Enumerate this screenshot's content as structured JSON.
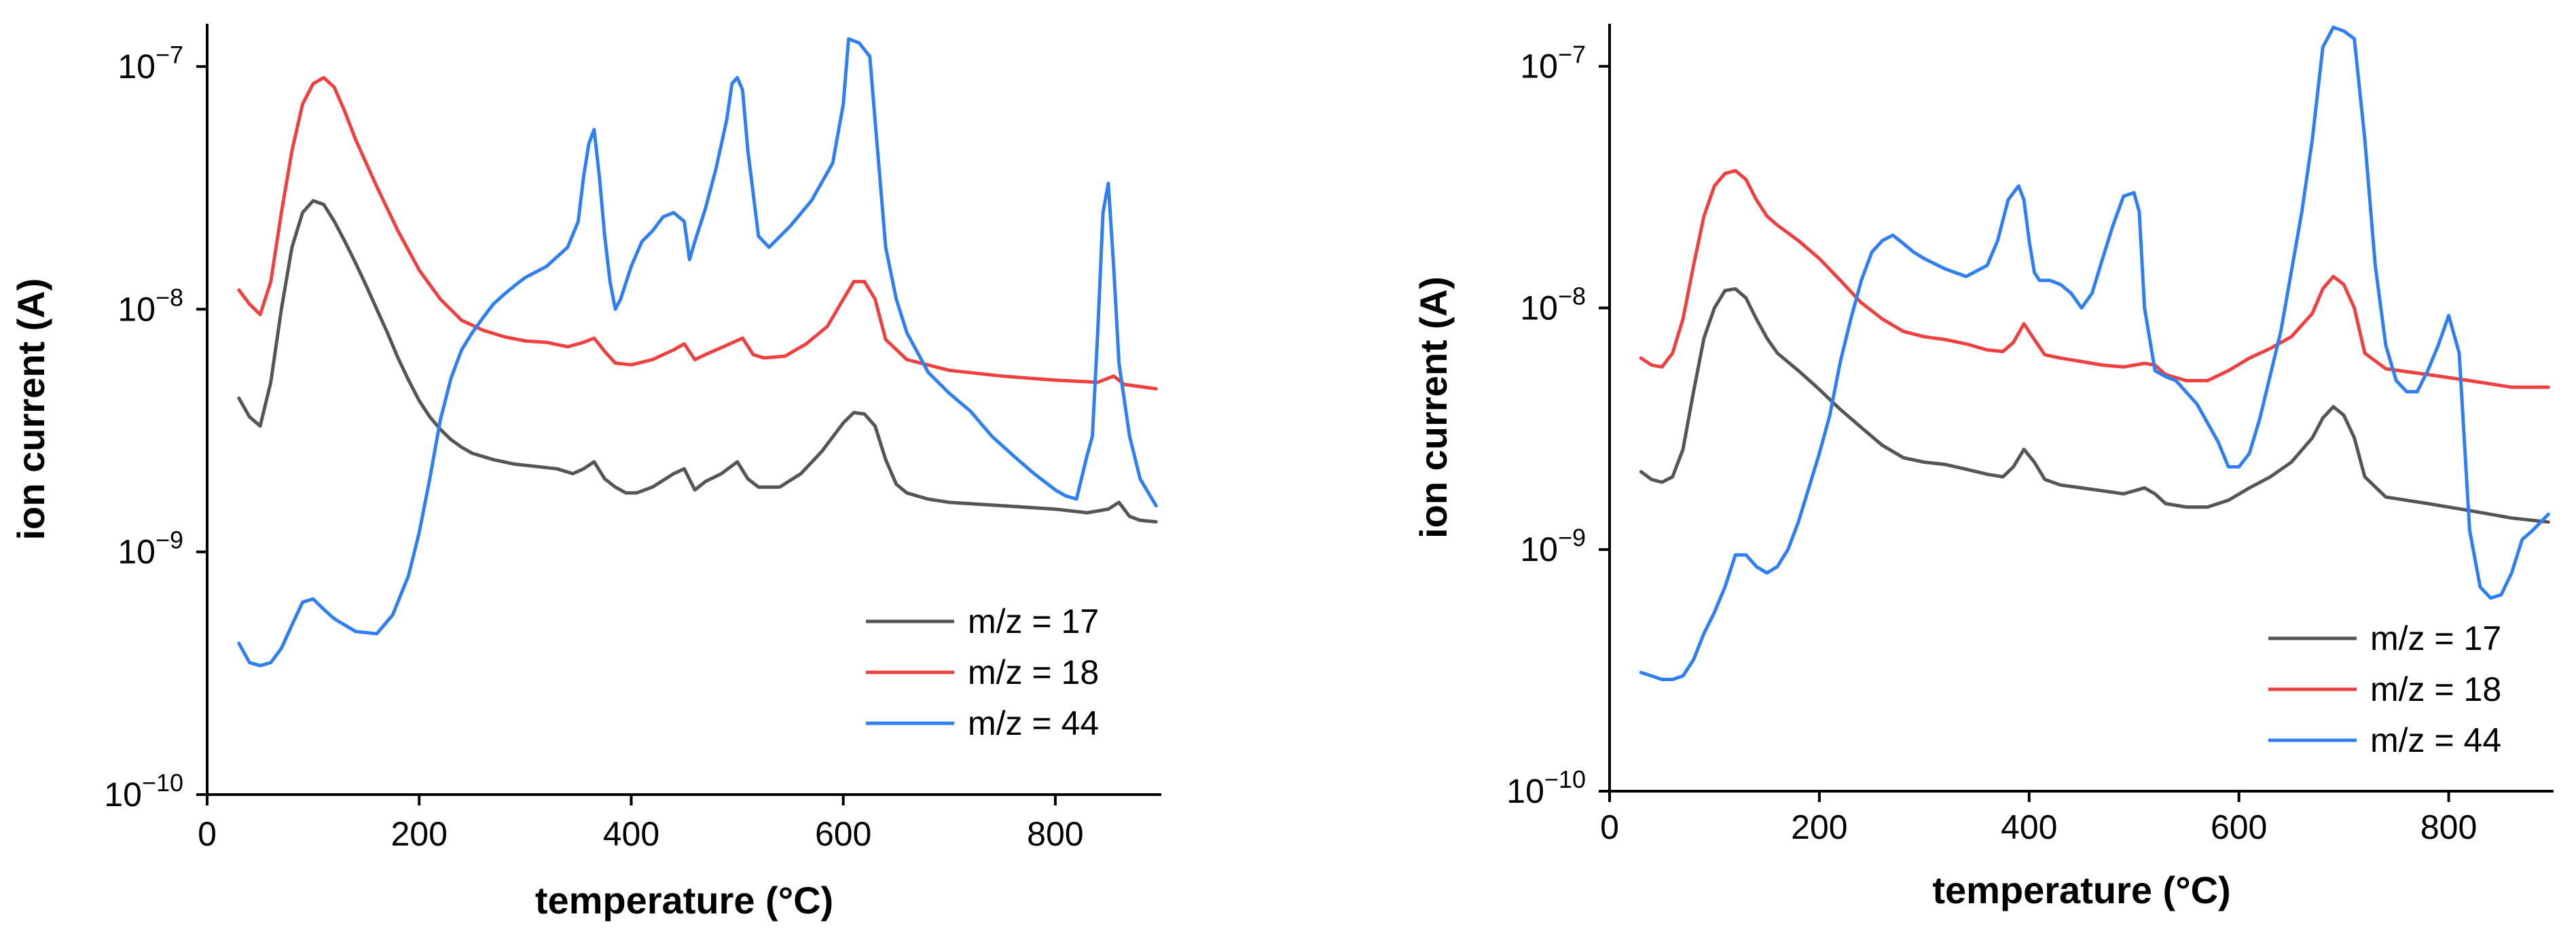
{
  "chart_data": [
    {
      "type": "line",
      "title": "",
      "xlabel": "temperature (°C)",
      "ylabel": "ion current (A)",
      "xlim": [
        0,
        900
      ],
      "ylim": [
        1e-10,
        1.5e-07
      ],
      "yscale": "log",
      "grid": false,
      "legend_position": "bottom-right",
      "x_ticks": [
        0,
        200,
        400,
        600,
        800
      ],
      "y_ticks": [
        {
          "value": 1e-10,
          "base": "10",
          "exponent": "−10"
        },
        {
          "value": 1e-09,
          "base": "10",
          "exponent": "−9"
        },
        {
          "value": 1e-08,
          "base": "10",
          "exponent": "−8"
        },
        {
          "value": 1e-07,
          "base": "10",
          "exponent": "−7"
        }
      ],
      "series": [
        {
          "name": "m/z = 17",
          "color": "#555555",
          "x": [
            30,
            40,
            50,
            60,
            70,
            80,
            90,
            100,
            110,
            120,
            130,
            140,
            150,
            160,
            170,
            180,
            190,
            200,
            210,
            220,
            230,
            240,
            250,
            270,
            290,
            310,
            330,
            345,
            355,
            365,
            375,
            385,
            395,
            405,
            420,
            440,
            450,
            460,
            470,
            485,
            500,
            510,
            520,
            540,
            560,
            580,
            600,
            610,
            620,
            630,
            640,
            650,
            660,
            680,
            700,
            750,
            800,
            830,
            850,
            860,
            870,
            880,
            895
          ],
          "values": [
            4.3e-09,
            3.6e-09,
            3.3e-09,
            5e-09,
            1e-08,
            1.8e-08,
            2.5e-08,
            2.8e-08,
            2.7e-08,
            2.3e-08,
            1.9e-08,
            1.55e-08,
            1.25e-08,
            1e-08,
            8e-09,
            6.3e-09,
            5.1e-09,
            4.2e-09,
            3.6e-09,
            3.2e-09,
            2.9e-09,
            2.7e-09,
            2.55e-09,
            2.4e-09,
            2.3e-09,
            2.25e-09,
            2.2e-09,
            2.1e-09,
            2.2e-09,
            2.35e-09,
            2e-09,
            1.85e-09,
            1.75e-09,
            1.75e-09,
            1.85e-09,
            2.1e-09,
            2.2e-09,
            1.8e-09,
            1.95e-09,
            2.1e-09,
            2.35e-09,
            2e-09,
            1.85e-09,
            1.85e-09,
            2.1e-09,
            2.6e-09,
            3.4e-09,
            3.75e-09,
            3.7e-09,
            3.3e-09,
            2.4e-09,
            1.9e-09,
            1.75e-09,
            1.65e-09,
            1.6e-09,
            1.55e-09,
            1.5e-09,
            1.45e-09,
            1.5e-09,
            1.6e-09,
            1.4e-09,
            1.35e-09,
            1.33e-09
          ]
        },
        {
          "name": "m/z = 18",
          "color": "#ef4040",
          "x": [
            30,
            40,
            50,
            60,
            70,
            80,
            90,
            100,
            110,
            120,
            130,
            140,
            160,
            180,
            200,
            220,
            240,
            260,
            280,
            300,
            320,
            340,
            355,
            365,
            375,
            385,
            400,
            420,
            440,
            450,
            460,
            470,
            490,
            505,
            515,
            525,
            545,
            565,
            585,
            600,
            610,
            620,
            630,
            640,
            660,
            700,
            750,
            800,
            840,
            855,
            865,
            895
          ],
          "values": [
            1.2e-08,
            1.05e-08,
            9.5e-09,
            1.3e-08,
            2.5e-08,
            4.5e-08,
            7e-08,
            8.5e-08,
            9e-08,
            8.2e-08,
            6.5e-08,
            5e-08,
            3.2e-08,
            2.1e-08,
            1.45e-08,
            1.1e-08,
            9e-09,
            8.2e-09,
            7.7e-09,
            7.4e-09,
            7.3e-09,
            7e-09,
            7.3e-09,
            7.6e-09,
            6.7e-09,
            6e-09,
            5.9e-09,
            6.2e-09,
            6.8e-09,
            7.2e-09,
            6.2e-09,
            6.5e-09,
            7.1e-09,
            7.6e-09,
            6.5e-09,
            6.3e-09,
            6.4e-09,
            7.2e-09,
            8.5e-09,
            1.1e-08,
            1.3e-08,
            1.3e-08,
            1.1e-08,
            7.5e-09,
            6.2e-09,
            5.6e-09,
            5.3e-09,
            5.1e-09,
            5e-09,
            5.3e-09,
            4.9e-09,
            4.7e-09
          ]
        },
        {
          "name": "m/z = 44",
          "color": "#2f7ff0",
          "x": [
            30,
            40,
            50,
            60,
            70,
            80,
            90,
            100,
            110,
            120,
            140,
            160,
            175,
            190,
            200,
            210,
            220,
            230,
            240,
            250,
            260,
            270,
            280,
            290,
            300,
            320,
            340,
            350,
            355,
            360,
            365,
            370,
            375,
            380,
            385,
            390,
            400,
            410,
            420,
            430,
            440,
            450,
            455,
            460,
            470,
            480,
            490,
            495,
            500,
            505,
            510,
            520,
            530,
            550,
            570,
            590,
            600,
            605,
            615,
            625,
            630,
            640,
            650,
            660,
            680,
            700,
            720,
            740,
            760,
            780,
            800,
            810,
            820,
            830,
            835,
            840,
            845,
            850,
            855,
            860,
            870,
            880,
            895
          ],
          "values": [
            4.2e-10,
            3.5e-10,
            3.4e-10,
            3.5e-10,
            4e-10,
            5e-10,
            6.2e-10,
            6.4e-10,
            5.8e-10,
            5.3e-10,
            4.7e-10,
            4.6e-10,
            5.5e-10,
            8e-10,
            1.2e-09,
            2e-09,
            3.5e-09,
            5.2e-09,
            6.8e-09,
            8e-09,
            9.2e-09,
            1.05e-08,
            1.15e-08,
            1.25e-08,
            1.35e-08,
            1.5e-08,
            1.8e-08,
            2.3e-08,
            3.5e-08,
            4.8e-08,
            5.5e-08,
            3.5e-08,
            2e-08,
            1.3e-08,
            1e-08,
            1.1e-08,
            1.5e-08,
            1.9e-08,
            2.1e-08,
            2.4e-08,
            2.5e-08,
            2.3e-08,
            1.6e-08,
            1.9e-08,
            2.6e-08,
            3.8e-08,
            6e-08,
            8.5e-08,
            9e-08,
            8e-08,
            4.5e-08,
            2e-08,
            1.8e-08,
            2.2e-08,
            2.8e-08,
            4e-08,
            7e-08,
            1.3e-07,
            1.25e-07,
            1.1e-07,
            6e-08,
            1.8e-08,
            1.1e-08,
            8e-09,
            5.5e-09,
            4.5e-09,
            3.8e-09,
            3e-09,
            2.5e-09,
            2.1e-09,
            1.8e-09,
            1.7e-09,
            1.65e-09,
            2.5e-09,
            3e-09,
            8e-09,
            2.5e-08,
            3.3e-08,
            1.5e-08,
            6e-09,
            3e-09,
            2e-09,
            1.55e-09
          ]
        }
      ]
    },
    {
      "type": "line",
      "title": "",
      "xlabel": "temperature (°C)",
      "ylabel": "ion current (A)",
      "xlim": [
        0,
        900
      ],
      "ylim": [
        1e-10,
        1.5e-07
      ],
      "yscale": "log",
      "grid": false,
      "legend_position": "bottom-right",
      "x_ticks": [
        0,
        200,
        400,
        600,
        800
      ],
      "y_ticks": [
        {
          "value": 1e-10,
          "base": "10",
          "exponent": "−10"
        },
        {
          "value": 1e-09,
          "base": "10",
          "exponent": "−9"
        },
        {
          "value": 1e-08,
          "base": "10",
          "exponent": "−8"
        },
        {
          "value": 1e-07,
          "base": "10",
          "exponent": "−7"
        }
      ],
      "series": [
        {
          "name": "m/z = 17",
          "color": "#555555",
          "x": [
            30,
            40,
            50,
            60,
            70,
            80,
            90,
            100,
            110,
            120,
            130,
            140,
            150,
            160,
            180,
            200,
            220,
            240,
            260,
            280,
            300,
            320,
            340,
            360,
            375,
            385,
            395,
            405,
            415,
            430,
            450,
            470,
            490,
            510,
            520,
            530,
            550,
            570,
            590,
            610,
            630,
            650,
            670,
            680,
            690,
            700,
            710,
            720,
            740,
            780,
            820,
            860,
            895
          ],
          "values": [
            2.1e-09,
            1.95e-09,
            1.9e-09,
            2e-09,
            2.6e-09,
            4.5e-09,
            7.5e-09,
            1e-08,
            1.18e-08,
            1.2e-08,
            1.1e-08,
            9e-09,
            7.5e-09,
            6.5e-09,
            5.5e-09,
            4.6e-09,
            3.8e-09,
            3.2e-09,
            2.7e-09,
            2.4e-09,
            2.3e-09,
            2.25e-09,
            2.15e-09,
            2.05e-09,
            2e-09,
            2.2e-09,
            2.6e-09,
            2.3e-09,
            1.95e-09,
            1.85e-09,
            1.8e-09,
            1.75e-09,
            1.7e-09,
            1.8e-09,
            1.7e-09,
            1.55e-09,
            1.5e-09,
            1.5e-09,
            1.6e-09,
            1.8e-09,
            2e-09,
            2.3e-09,
            2.9e-09,
            3.5e-09,
            3.9e-09,
            3.6e-09,
            2.9e-09,
            2e-09,
            1.65e-09,
            1.55e-09,
            1.45e-09,
            1.35e-09,
            1.3e-09
          ]
        },
        {
          "name": "m/z = 18",
          "color": "#ef4040",
          "x": [
            30,
            40,
            50,
            60,
            70,
            80,
            90,
            100,
            110,
            120,
            130,
            140,
            150,
            160,
            180,
            200,
            220,
            240,
            260,
            280,
            300,
            320,
            340,
            360,
            375,
            385,
            395,
            405,
            415,
            430,
            450,
            470,
            490,
            510,
            520,
            530,
            550,
            570,
            590,
            610,
            630,
            650,
            670,
            680,
            690,
            700,
            710,
            720,
            740,
            780,
            820,
            860,
            895
          ],
          "values": [
            6.2e-09,
            5.8e-09,
            5.7e-09,
            6.5e-09,
            9e-09,
            1.5e-08,
            2.4e-08,
            3.2e-08,
            3.6e-08,
            3.7e-08,
            3.4e-08,
            2.8e-08,
            2.4e-08,
            2.2e-08,
            1.9e-08,
            1.6e-08,
            1.3e-08,
            1.05e-08,
            9e-09,
            8e-09,
            7.6e-09,
            7.4e-09,
            7.1e-09,
            6.7e-09,
            6.6e-09,
            7.2e-09,
            8.6e-09,
            7.4e-09,
            6.4e-09,
            6.2e-09,
            6e-09,
            5.8e-09,
            5.7e-09,
            5.9e-09,
            5.8e-09,
            5.3e-09,
            5e-09,
            5e-09,
            5.5e-09,
            6.2e-09,
            6.8e-09,
            7.6e-09,
            9.5e-09,
            1.2e-08,
            1.35e-08,
            1.25e-08,
            1e-08,
            6.5e-09,
            5.6e-09,
            5.3e-09,
            5e-09,
            4.7e-09,
            4.7e-09
          ]
        },
        {
          "name": "m/z = 44",
          "color": "#2f7ff0",
          "x": [
            30,
            40,
            50,
            60,
            70,
            80,
            90,
            100,
            110,
            120,
            130,
            140,
            150,
            160,
            170,
            180,
            190,
            200,
            210,
            220,
            230,
            240,
            250,
            260,
            270,
            280,
            290,
            300,
            320,
            340,
            360,
            370,
            380,
            390,
            395,
            400,
            405,
            410,
            420,
            430,
            440,
            450,
            460,
            470,
            480,
            490,
            500,
            505,
            510,
            520,
            530,
            540,
            560,
            580,
            590,
            600,
            610,
            620,
            640,
            660,
            670,
            680,
            690,
            700,
            710,
            720,
            730,
            740,
            750,
            760,
            770,
            780,
            790,
            800,
            810,
            820,
            830,
            840,
            850,
            860,
            870,
            880,
            895
          ],
          "values": [
            3.1e-10,
            3e-10,
            2.9e-10,
            2.9e-10,
            3e-10,
            3.5e-10,
            4.5e-10,
            5.5e-10,
            7e-10,
            9.5e-10,
            9.5e-10,
            8.5e-10,
            8e-10,
            8.5e-10,
            1e-09,
            1.3e-09,
            1.8e-09,
            2.5e-09,
            3.6e-09,
            6e-09,
            9e-09,
            1.3e-08,
            1.7e-08,
            1.9e-08,
            2e-08,
            1.85e-08,
            1.7e-08,
            1.6e-08,
            1.45e-08,
            1.35e-08,
            1.5e-08,
            1.9e-08,
            2.8e-08,
            3.2e-08,
            2.8e-08,
            1.9e-08,
            1.4e-08,
            1.3e-08,
            1.3e-08,
            1.25e-08,
            1.15e-08,
            1e-08,
            1.15e-08,
            1.6e-08,
            2.2e-08,
            2.9e-08,
            3e-08,
            2.5e-08,
            1e-08,
            5.5e-09,
            5.2e-09,
            5e-09,
            4e-09,
            2.8e-09,
            2.2e-09,
            2.2e-09,
            2.5e-09,
            3.5e-09,
            8e-09,
            2.5e-08,
            5e-08,
            1.2e-07,
            1.45e-07,
            1.4e-07,
            1.3e-07,
            5e-08,
            1.5e-08,
            7e-09,
            5e-09,
            4.5e-09,
            4.5e-09,
            5.5e-09,
            7e-09,
            9.3e-09,
            6.5e-09,
            1.2e-09,
            7e-10,
            6.3e-10,
            6.5e-10,
            8e-10,
            1.1e-09,
            1.2e-09,
            1.4e-09
          ]
        }
      ]
    }
  ]
}
